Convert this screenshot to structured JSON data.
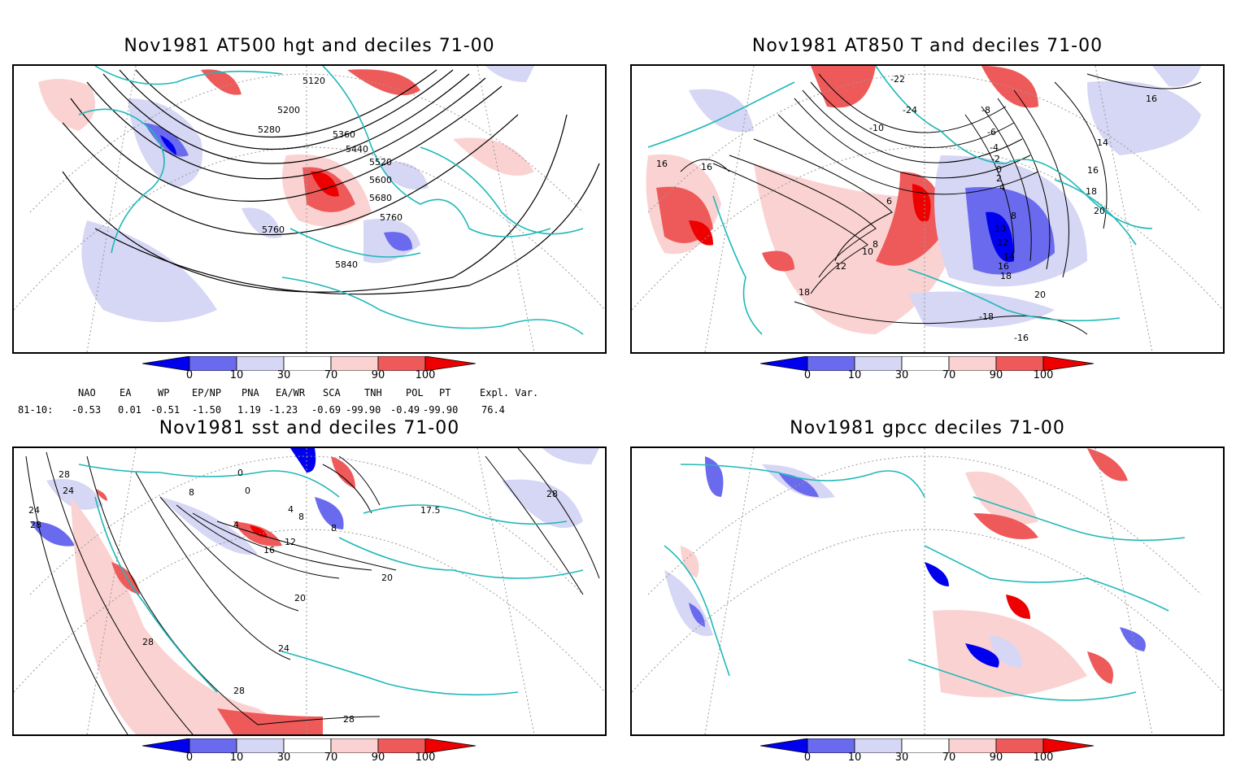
{
  "panels": [
    {
      "id": "p1",
      "title": "Nov1981 AT500 hgt and deciles 71-00",
      "contour_labels": [
        "5120",
        "5200",
        "5280",
        "5360",
        "5440",
        "5520",
        "5600",
        "5680",
        "5760",
        "5760",
        "5840"
      ]
    },
    {
      "id": "p2",
      "title": "Nov1981 AT850 T and deciles 71-00",
      "contour_labels": [
        "-22",
        "-24",
        "-10",
        "-8",
        "-6",
        "-4",
        "-2",
        "0",
        "2",
        "4",
        "6",
        "8",
        "10",
        "12",
        "14",
        "16",
        "18",
        "20",
        "16",
        "16",
        "18",
        "16",
        "8",
        "10",
        "12",
        "14",
        "16",
        "18",
        "20",
        "-18",
        "-16"
      ]
    },
    {
      "id": "p3",
      "title": "Nov1981 sst and deciles 71-00",
      "contour_labels": [
        "28",
        "24",
        "28",
        "24",
        "0",
        "8",
        "0",
        "4",
        "4",
        "8",
        "12",
        "16",
        "20",
        "20",
        "24",
        "28",
        "28",
        "28",
        "28",
        "8",
        "17.5"
      ]
    },
    {
      "id": "p4",
      "title": "Nov1981 gpcc deciles 71-00",
      "contour_labels": []
    }
  ],
  "colorbar": {
    "ticks": [
      "0",
      "10",
      "30",
      "70",
      "90",
      "100"
    ],
    "colors": {
      "dark_blue": "#0000ee",
      "mid_blue": "#6a6aee",
      "light_blue": "#d6d6f5",
      "white": "#ffffff",
      "light_red": "#fbd2d2",
      "mid_red": "#ee5a5a",
      "dark_red": "#ee0000"
    }
  },
  "indices": {
    "headers": [
      "NAO",
      "EA",
      "WP",
      "EP/NP",
      "PNA",
      "EA/WR",
      "SCA",
      "TNH",
      "POL",
      "PT",
      "Expl. Var."
    ],
    "row_label": "81-10:",
    "values": [
      "-0.53",
      "0.01",
      "-0.51",
      "-1.50",
      "1.19",
      "-1.23",
      "-0.69",
      "-99.90",
      "-0.49",
      "-99.90",
      "76.4"
    ]
  },
  "map_colors": {
    "coast": "#20b8b8",
    "contour": "#000000",
    "grid": "#999999"
  }
}
